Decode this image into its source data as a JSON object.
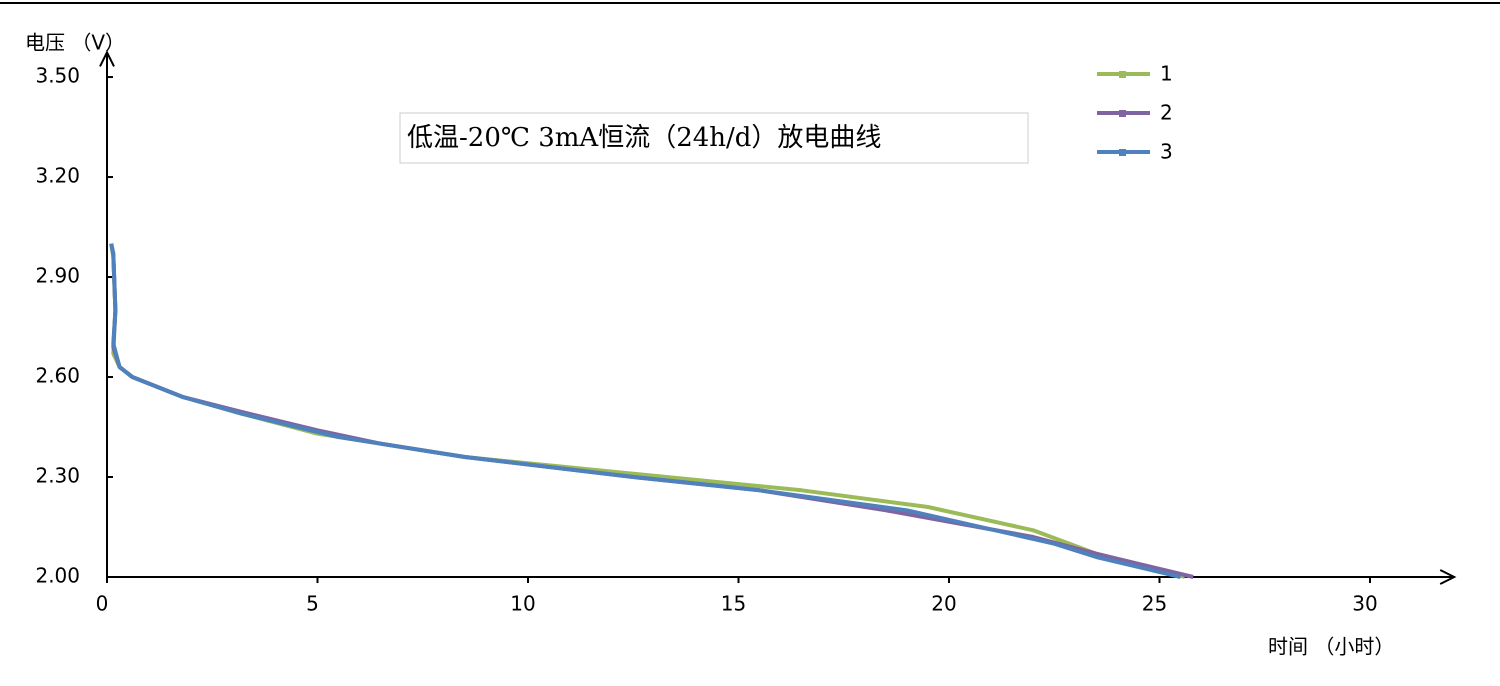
{
  "chart_data": {
    "type": "line",
    "title": "低温-20℃ 3mA恒流（24h/d）放电曲线",
    "x_label": "时间 （小时）",
    "y_label": "电压 （V）",
    "xlim": [
      0,
      32
    ],
    "xticks": [
      0,
      5,
      10,
      15,
      20,
      25,
      30
    ],
    "ylim": [
      2,
      3.55
    ],
    "yticks": [
      {
        "value": 2,
        "label": "2.00"
      },
      {
        "value": 2.3,
        "label": "2.30"
      },
      {
        "value": 2.6,
        "label": "2.60"
      },
      {
        "value": 2.9,
        "label": "2.90"
      },
      {
        "value": 3.2,
        "label": "3.20"
      },
      {
        "value": 3.5,
        "label": "3.50"
      }
    ],
    "legend": "top-right",
    "series": [
      {
        "name": "1",
        "color": "#9bbb59",
        "x": [
          0.1,
          0.15,
          0.2,
          0.15,
          0.3,
          0.6,
          1.8,
          3.2,
          5,
          6.5,
          8.5,
          12.5,
          16.5,
          19.5,
          22,
          23.5,
          25.6
        ],
        "values": [
          3.0,
          2.96,
          2.8,
          2.67,
          2.63,
          2.6,
          2.54,
          2.49,
          2.43,
          2.4,
          2.36,
          2.31,
          2.26,
          2.21,
          2.14,
          2.07,
          2.0
        ]
      },
      {
        "name": "2",
        "color": "#8064a2",
        "x": [
          0.1,
          0.15,
          0.2,
          0.15,
          0.3,
          0.6,
          1.8,
          3.2,
          5,
          6.5,
          8.5,
          12.5,
          15.5,
          18.5,
          22,
          23.5,
          25.8
        ],
        "values": [
          3.0,
          2.97,
          2.8,
          2.69,
          2.63,
          2.6,
          2.54,
          2.495,
          2.44,
          2.4,
          2.36,
          2.3,
          2.26,
          2.2,
          2.12,
          2.07,
          2.0
        ]
      },
      {
        "name": "3",
        "color": "#4f81bd",
        "x": [
          0.1,
          0.15,
          0.2,
          0.15,
          0.3,
          0.6,
          1.8,
          3.2,
          5.5,
          6.5,
          8.5,
          12.5,
          15.5,
          19,
          22.5,
          23.5,
          25.5
        ],
        "values": [
          3.0,
          2.97,
          2.8,
          2.7,
          2.63,
          2.6,
          2.54,
          2.49,
          2.42,
          2.4,
          2.36,
          2.3,
          2.26,
          2.2,
          2.1,
          2.06,
          2.0
        ]
      }
    ]
  }
}
